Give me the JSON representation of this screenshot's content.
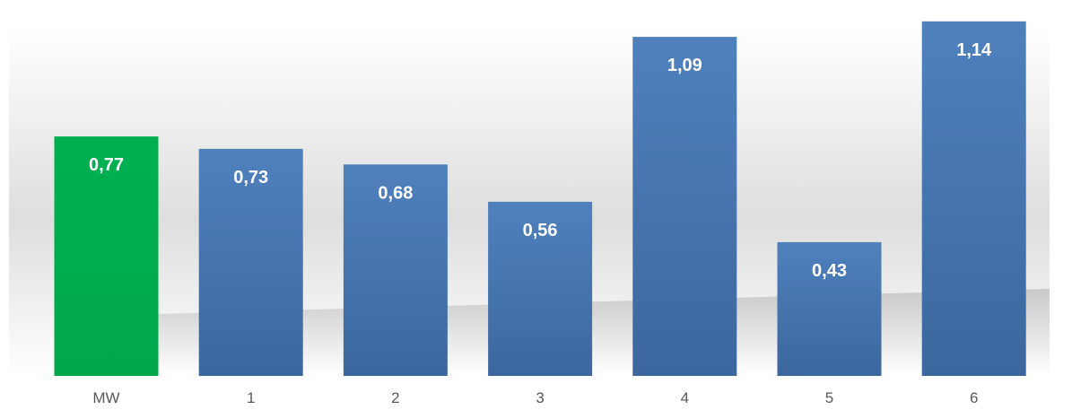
{
  "chart_data": {
    "type": "bar",
    "categories": [
      "MW",
      "1",
      "2",
      "3",
      "4",
      "5",
      "6"
    ],
    "values": [
      0.77,
      0.73,
      0.68,
      0.56,
      1.09,
      0.43,
      1.14
    ],
    "data_labels": [
      "0,77",
      "0,73",
      "0,68",
      "0,56",
      "1,09",
      "0,43",
      "1,14"
    ],
    "bar_colors": [
      "#00b050",
      "#4a7ebb",
      "#4a7ebb",
      "#4a7ebb",
      "#4a7ebb",
      "#4a7ebb",
      "#4a7ebb"
    ],
    "title": "",
    "xlabel": "",
    "ylabel": "",
    "ylim": [
      0,
      1.2
    ],
    "grid": false,
    "legend": "none"
  }
}
